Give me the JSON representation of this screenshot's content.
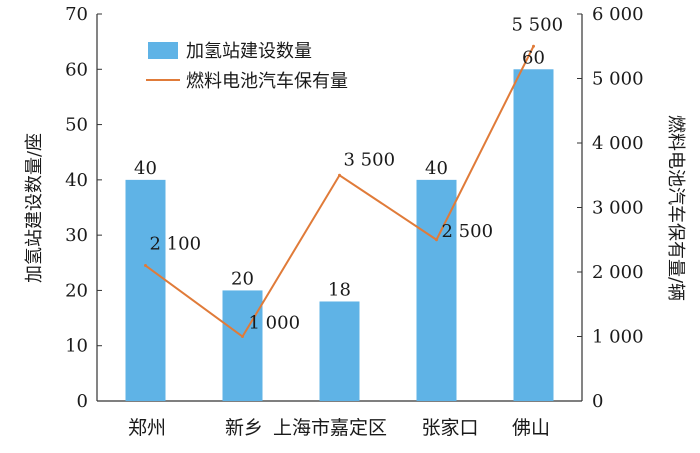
{
  "chart_data": {
    "type": "bar",
    "categories": [
      "郑州",
      "新乡",
      "上海市嘉定区",
      "张家口",
      "佛山"
    ],
    "series": [
      {
        "name": "加氢站建设数量",
        "type": "bar",
        "axis": "left",
        "values": [
          40,
          20,
          18,
          40,
          60
        ],
        "labels": [
          "40",
          "20",
          "18",
          "40",
          "60"
        ]
      },
      {
        "name": "燃料电池汽车保有量",
        "type": "line",
        "axis": "right",
        "values": [
          2100,
          1000,
          3500,
          2500,
          5500
        ],
        "labels": [
          "2 100",
          "1 000",
          "3 500",
          "2 500",
          "5 500"
        ]
      }
    ],
    "ylabel_left": "加氢站建设数量/座",
    "ylabel_right": "燃料电池汽车保有量/辆",
    "ylim_left": [
      0,
      70
    ],
    "ylim_right": [
      0,
      6000
    ],
    "yticks_left": [
      "0",
      "10",
      "20",
      "30",
      "40",
      "50",
      "60",
      "70"
    ],
    "yticks_right": [
      "0",
      "1 000",
      "2 000",
      "3 000",
      "4 000",
      "5 000",
      "6 000"
    ],
    "legend_position": "top-left",
    "grid": false,
    "colors": {
      "bar": "#5fb3e6",
      "line": "#e07b39",
      "axis": "#333333"
    }
  }
}
